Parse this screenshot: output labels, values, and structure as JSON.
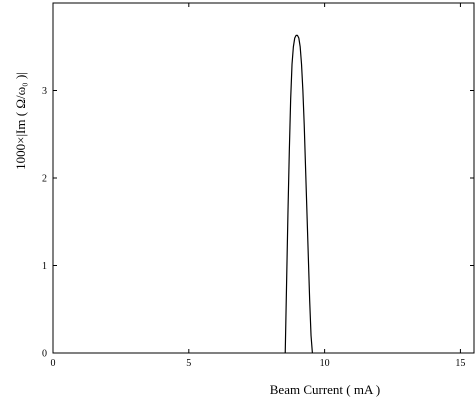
{
  "chart_data": {
    "type": "line",
    "title": "",
    "xlabel": "Beam Current ( mA )",
    "ylabel": "1000×|Im ( Ω/ω₀ )|",
    "xlim": [
      0,
      15.5
    ],
    "ylim": [
      0,
      4.0
    ],
    "x_ticks": [
      0,
      5,
      10,
      15
    ],
    "x_tick_labels": [
      "0",
      "5",
      "10",
      "15"
    ],
    "y_ticks": [
      0,
      1,
      2,
      3
    ],
    "y_tick_labels": [
      "0",
      "1",
      "2",
      "3"
    ],
    "grid": false,
    "legend": "none",
    "line_color": "#000000",
    "series": [
      {
        "x": [
          8.55,
          8.6,
          8.65,
          8.7,
          8.75,
          8.8,
          8.85,
          8.9,
          8.95,
          9.0,
          9.05,
          9.1,
          9.15,
          9.2,
          9.25,
          9.3,
          9.35,
          9.4,
          9.45,
          9.5,
          9.55
        ],
        "y": [
          0,
          0.8,
          1.6,
          2.3,
          2.9,
          3.3,
          3.5,
          3.6,
          3.63,
          3.63,
          3.6,
          3.5,
          3.3,
          3.0,
          2.6,
          2.1,
          1.6,
          1.1,
          0.6,
          0.2,
          0
        ]
      }
    ]
  }
}
